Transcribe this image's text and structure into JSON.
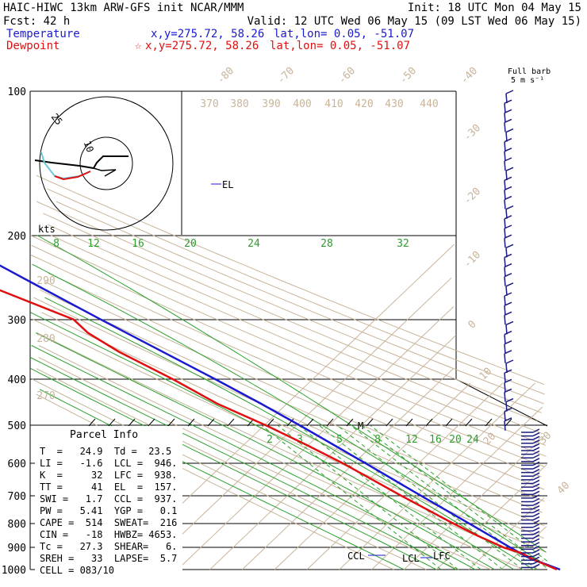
{
  "header": {
    "model_line": "HAIC-HIWC 13km ARW-GFS init   NCAR/MMM",
    "init_line": "Init: 18 UTC Mon 04 May 15",
    "fcst_line": "Fcst:    42 h",
    "valid_line": "Valid: 12 UTC Wed 06 May 15 (09 LST Wed 06 May 15)",
    "temperature_label": "Temperature",
    "temperature_xy": "x,y=275.72, 58.26",
    "temperature_latlon": "lat,lon=  0.05, -51.07",
    "dewpoint_label": "Dewpoint",
    "dewpoint_marker": "☆",
    "dewpoint_xy": "x,y=275.72, 58.26",
    "dewpoint_latlon": "lat,lon=  0.05, -51.07",
    "barb_key_line1": "Full barb",
    "barb_key_line2": "5 m s⁻¹"
  },
  "hodograph": {
    "ring_label_25": "25",
    "ring_label_10": "10",
    "units_label": "kts"
  },
  "parcel_info": {
    "title": "Parcel Info",
    "rows": [
      "T  =   24.9  Td =  23.5",
      "LI =   -1.6  LCL =  946.",
      "K  =     32  LFC =  938.",
      "TT =     41  EL  =  157.",
      "SWI =   1.7  CCL =  937.",
      "PW =   5.41  YGP =   0.1",
      "CAPE =  514  SWEAT=  216",
      "CIN =   -18  HWBZ= 4653.",
      "Tc =   27.3  SHEAR=   6.",
      "SREH =   33  LAPSE=  5.7",
      "CELL = 083/10"
    ]
  },
  "annotations": {
    "el": "EL",
    "m": "M",
    "ccl": "CCL",
    "lcl": "LCL",
    "lfc": "LFC"
  },
  "chart_data": {
    "type": "line",
    "title": "",
    "ylabel": "",
    "pressure_levels": [
      100,
      200,
      300,
      400,
      500,
      600,
      700,
      800,
      900,
      1000
    ],
    "pressure_labels": [
      "100",
      "200",
      "300",
      "400",
      "500",
      "600",
      "700",
      "800",
      "900",
      "1000"
    ],
    "isotherm_labels": [
      "-80",
      "-70",
      "-60",
      "-50",
      "-40",
      "-30",
      "-20",
      "-10",
      "0",
      "10",
      "20",
      "30",
      "40"
    ],
    "theta_labels": [
      "370",
      "380",
      "390",
      "400",
      "410",
      "420",
      "430",
      "440"
    ],
    "theta_side_labels": [
      "290",
      "280",
      "270"
    ],
    "mixing_ratio_upper_labels": [
      "8",
      "12",
      "16",
      "20",
      "24",
      "28",
      "32"
    ],
    "mixing_ratio_lower_labels": [
      "2",
      "3",
      "5",
      "8",
      "12",
      "16",
      "20",
      "24"
    ],
    "series": [
      {
        "name": "Temperature",
        "color": "#1a1ad0",
        "points": [
          [
            1000,
            28.2
          ],
          [
            975,
            25.6
          ],
          [
            950,
            22.7
          ],
          [
            925,
            21.3
          ],
          [
            900,
            20.0
          ],
          [
            850,
            17.6
          ],
          [
            800,
            15.0
          ],
          [
            700,
            9.1
          ],
          [
            600,
            2.6
          ],
          [
            500,
            -5.4
          ],
          [
            450,
            -10.4
          ],
          [
            400,
            -16.6
          ],
          [
            300,
            -32.6
          ],
          [
            250,
            -42.2
          ],
          [
            200,
            -53.8
          ],
          [
            160,
            -66.3
          ],
          [
            140,
            -74.5
          ],
          [
            120,
            -79.3
          ],
          [
            100,
            -80.0
          ]
        ]
      },
      {
        "name": "Dewpoint",
        "color": "#e01010",
        "points": [
          [
            1000,
            27.2
          ],
          [
            950,
            23.1
          ],
          [
            925,
            21.8
          ],
          [
            900,
            18.0
          ],
          [
            850,
            13.7
          ],
          [
            800,
            10.1
          ],
          [
            700,
            3.0
          ],
          [
            600,
            -4.4
          ],
          [
            550,
            -9.6
          ],
          [
            500,
            -15.8
          ],
          [
            450,
            -23.9
          ],
          [
            400,
            -29.7
          ],
          [
            350,
            -37.5
          ],
          [
            320,
            -40.9
          ],
          [
            300,
            -41.0
          ],
          [
            260,
            -54.5
          ],
          [
            240,
            -68.7
          ],
          [
            200,
            -81.5
          ],
          [
            160,
            -91.9
          ],
          [
            140,
            -96.7
          ],
          [
            120,
            -99.2
          ],
          [
            100,
            -100.2
          ]
        ]
      }
    ],
    "wind_barbs_right": 35,
    "wind_barbs_lower": 38
  }
}
